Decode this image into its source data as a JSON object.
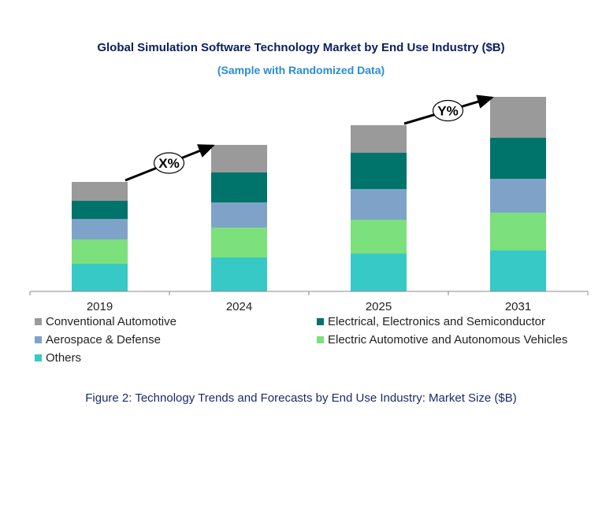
{
  "chart_data": {
    "type": "bar",
    "stacked": true,
    "title": "Global Simulation  Software Technology Market by End Use Industry ($B)",
    "subtitle": "(Sample with Randomized Data)",
    "categories": [
      "2019",
      "2024",
      "2025",
      "2031"
    ],
    "ylim": [
      0,
      250
    ],
    "series": [
      {
        "name": "Others",
        "color": "#36c9c6",
        "values": [
          35,
          43,
          48,
          52
        ]
      },
      {
        "name": "Electric Automotive and Autonomous Vehicles",
        "color": "#7ce07c",
        "values": [
          31,
          38,
          43,
          48
        ]
      },
      {
        "name": "Aerospace & Defense",
        "color": "#7fa3c8",
        "values": [
          26,
          32,
          39,
          43
        ]
      },
      {
        "name": "Electrical, Electronics and Semiconductor",
        "color": "#00736a",
        "values": [
          23,
          38,
          46,
          52
        ]
      },
      {
        "name": "Conventional Automotive",
        "color": "#9a9a9a",
        "values": [
          24,
          35,
          35,
          52
        ]
      }
    ],
    "annotations": [
      {
        "label": "X%",
        "from": "2019",
        "to": "2024"
      },
      {
        "label": "Y%",
        "from": "2025",
        "to": "2031"
      }
    ]
  },
  "legend": {
    "items": [
      {
        "label": "Conventional Automotive",
        "color": "#9a9a9a"
      },
      {
        "label": "Electrical, Electronics and Semiconductor",
        "color": "#00736a"
      },
      {
        "label": "Aerospace & Defense",
        "color": "#7fa3c8"
      },
      {
        "label": "Electric Automotive and Autonomous Vehicles",
        "color": "#7ce07c"
      },
      {
        "label": "Others",
        "color": "#36c9c6"
      }
    ]
  },
  "caption": "Figure 2: Technology  Trends  and Forecasts by End Use Industry:  Market Size ($B)"
}
